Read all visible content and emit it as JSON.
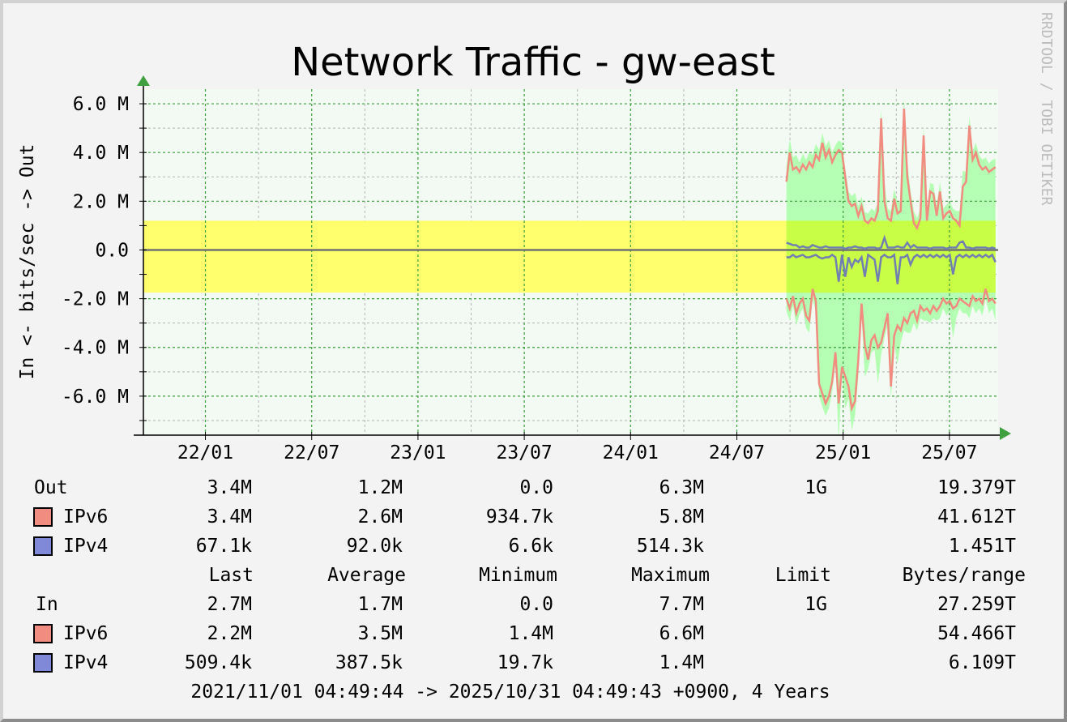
{
  "chart_data": {
    "type": "area",
    "title": "Network Traffic - gw-east",
    "ylabel": "In <- bits/sec -> Out",
    "watermark": "RRDTOOL / TOBI OETIKER",
    "x_ticks": [
      "22/01",
      "22/07",
      "23/01",
      "23/07",
      "24/01",
      "24/07",
      "25/01",
      "25/07"
    ],
    "x_tick_months": [
      3,
      9,
      15,
      21,
      27,
      33,
      39,
      45
    ],
    "x_range_months": [
      -0.5,
      47.75
    ],
    "y_ticks": [
      "6.0 M",
      "4.0 M",
      "2.0 M",
      "0.0",
      "-2.0 M",
      "-4.0 M",
      "-6.0 M"
    ],
    "y_tick_values": [
      6,
      4,
      2,
      0,
      -2,
      -4,
      -6
    ],
    "ylim": [
      -7.6,
      6.6
    ],
    "grid": true,
    "colors": {
      "plot_bg": "#f3f9f3",
      "grid_major": "#3ca03c",
      "grid_minor": "#b4b4b4",
      "band": "#ffff6e",
      "area_out": "#b4ffb4",
      "area_in": "#b4ffb4",
      "area_overlap": "#c8ff46",
      "ipv6": "#f08c80",
      "ipv4": "#7080b0",
      "zero_line": "#707070",
      "arrow": "#40a040"
    },
    "band": {
      "y_from": 1.2,
      "y_to": -1.75
    },
    "data_start_month": 35.8,
    "data_end_month": 47.6,
    "series": [
      {
        "name": "IPv6",
        "direction": "out",
        "values": [
          2.8,
          4.0,
          3.3,
          3.4,
          3.2,
          3.5,
          3.3,
          3.6,
          3.4,
          3.9,
          3.7,
          4.4,
          3.8,
          4.1,
          3.6,
          3.9,
          4.1,
          4.0,
          3.0,
          2.0,
          1.8,
          1.9,
          1.4,
          1.8,
          1.2,
          1.1,
          1.3,
          1.2,
          1.6,
          5.4,
          2.0,
          1.3,
          1.2,
          2.1,
          1.5,
          1.6,
          5.8,
          3.0,
          2.0,
          1.1,
          0.9,
          1.3,
          4.7,
          1.2,
          2.4,
          2.3,
          1.4,
          2.4,
          1.3,
          1.5,
          1.6,
          1.3,
          1.2,
          1.0,
          2.6,
          2.8,
          5.1,
          3.7,
          4.0,
          3.5,
          3.3,
          3.4,
          3.2,
          3.3,
          3.4
        ]
      },
      {
        "name": "IPv4",
        "direction": "out",
        "values": [
          0.3,
          0.25,
          0.2,
          0.2,
          0.1,
          0.15,
          0.1,
          0.1,
          0.2,
          0.15,
          0.1,
          0.1,
          0.15,
          0.1,
          0.1,
          0.1,
          0.1,
          0.1,
          0.05,
          0.1,
          0.1,
          0.15,
          0.1,
          0.1,
          0.05,
          0.1,
          0.1,
          0.1,
          0.05,
          0.1,
          0.5,
          0.1,
          0.1,
          0.1,
          0.15,
          0.1,
          0.1,
          0.3,
          0.1,
          0.2,
          0.1,
          0.1,
          0.1,
          0.1,
          0.05,
          0.1,
          0.1,
          0.1,
          0.1,
          0.05,
          0.1,
          0.1,
          0.1,
          0.3,
          0.35,
          0.1,
          0.1,
          0.05,
          0.1,
          0.1,
          0.1,
          0.1,
          0.05,
          0.1,
          0.05
        ]
      },
      {
        "name": "IPv6",
        "direction": "in",
        "values": [
          -2.0,
          -2.4,
          -1.9,
          -2.6,
          -2.2,
          -2.0,
          -2.7,
          -2.9,
          -1.6,
          -2.1,
          -5.5,
          -5.9,
          -6.3,
          -6.0,
          -5.4,
          -4.2,
          -6.3,
          -4.8,
          -5.2,
          -5.6,
          -6.5,
          -6.2,
          -4.5,
          -2.2,
          -3.9,
          -4.5,
          -3.7,
          -3.5,
          -4.0,
          -3.8,
          -3.2,
          -2.6,
          -5.6,
          -3.5,
          -3.1,
          -3.3,
          -2.8,
          -3.0,
          -2.6,
          -2.5,
          -2.9,
          -2.3,
          -2.5,
          -2.4,
          -2.6,
          -2.3,
          -2.5,
          -2.3,
          -2.0,
          -2.2,
          -2.1,
          -2.4,
          -2.3,
          -2.0,
          -2.1,
          -2.2,
          -2.3,
          -1.9,
          -2.1,
          -2.0,
          -2.2,
          -1.6,
          -2.1,
          -2.0,
          -2.2
        ]
      },
      {
        "name": "IPv4",
        "direction": "in",
        "values": [
          -0.3,
          -0.3,
          -0.2,
          -0.3,
          -0.25,
          -0.2,
          -0.3,
          -0.3,
          -0.25,
          -0.2,
          -0.3,
          -0.35,
          -0.3,
          -0.3,
          -0.2,
          -0.3,
          -1.3,
          -0.2,
          -1.1,
          -0.3,
          -0.7,
          -0.4,
          -0.5,
          -0.3,
          -1.1,
          -0.2,
          -0.3,
          -0.4,
          -1.3,
          -0.3,
          -0.2,
          -0.3,
          -0.3,
          -0.2,
          -1.4,
          -0.3,
          -0.3,
          -0.2,
          -0.6,
          -0.3,
          -0.2,
          -0.3,
          -0.2,
          -0.3,
          -0.2,
          -0.3,
          -0.2,
          -0.3,
          -0.2,
          -0.3,
          -0.2,
          -1.0,
          -0.3,
          -0.2,
          -0.3,
          -0.2,
          -0.3,
          -0.2,
          -0.3,
          -0.2,
          -0.3,
          -0.2,
          -0.3,
          -0.2,
          -0.5
        ]
      }
    ],
    "legend": {
      "header": [
        "Last",
        "Average",
        "Minimum",
        "Maximum",
        "Limit",
        "Bytes/range"
      ],
      "out": {
        "label": "Out",
        "row": [
          "3.4M",
          "1.2M",
          "0.0",
          "6.3M",
          "1G",
          "19.379T"
        ],
        "ipv6": {
          "label": "IPv6",
          "row": [
            "3.4M",
            "2.6M",
            "934.7k",
            "5.8M",
            "",
            "41.612T"
          ]
        },
        "ipv4": {
          "label": "IPv4",
          "row": [
            "67.1k",
            "92.0k",
            "6.6k",
            "514.3k",
            "",
            "1.451T"
          ]
        }
      },
      "in": {
        "label": "In",
        "row": [
          "2.7M",
          "1.7M",
          "0.0",
          "7.7M",
          "1G",
          "27.259T"
        ],
        "ipv6": {
          "label": "IPv6",
          "row": [
            "2.2M",
            "3.5M",
            "1.4M",
            "6.6M",
            "",
            "54.466T"
          ]
        },
        "ipv4": {
          "label": "IPv4",
          "row": [
            "509.4k",
            "387.5k",
            "19.7k",
            "1.4M",
            "",
            "6.109T"
          ]
        }
      },
      "footer": "2021/11/01 04:49:44 -> 2025/10/31 04:49:43 +0900, 4 Years"
    }
  }
}
